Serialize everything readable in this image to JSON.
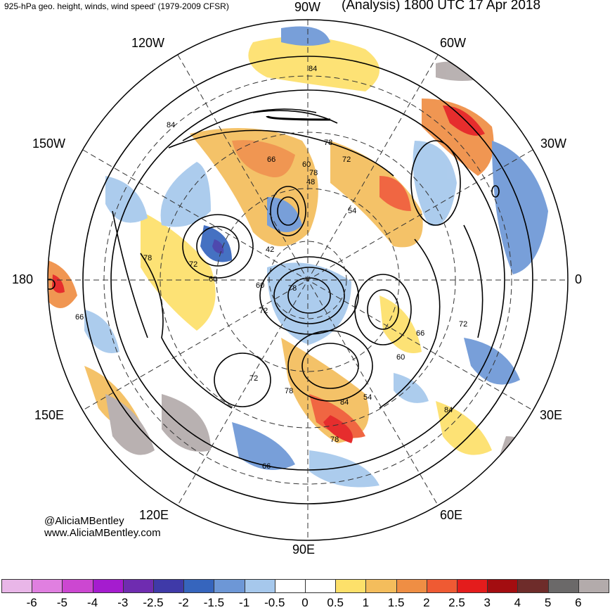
{
  "header": {
    "left_title": "925-hPa geo. height, winds, wind speed' (1979-2009 CFSR)",
    "right_title": "(Analysis) 1800 UTC 17 Apr 2018"
  },
  "longitude_labels": {
    "top": "90W",
    "upper_left": "120W",
    "upper_right": "60W",
    "left_upper": "150W",
    "right_upper": "30W",
    "left": "180",
    "right": "0",
    "left_lower": "150E",
    "right_lower": "30E",
    "lower_left": "120E",
    "lower_right": "60E",
    "bottom": "90E"
  },
  "contour_labels": [
    "84",
    "84",
    "78",
    "72",
    "66",
    "60",
    "48",
    "54",
    "42",
    "78",
    "72",
    "60",
    "60",
    "78",
    "72",
    "66",
    "72",
    "60",
    "54",
    "78",
    "84",
    "78",
    "84",
    "66",
    "72",
    "66",
    "78"
  ],
  "credits": {
    "handle": "@AliciaMBentley",
    "website": "www.AliciaMBentley.com"
  },
  "colorbar": {
    "ticks": [
      "-6",
      "-5",
      "-4",
      "-3",
      "-2.5",
      "-2",
      "-1.5",
      "-1",
      "-0.5",
      "0",
      "0.5",
      "1",
      "1.5",
      "2",
      "2.5",
      "3",
      "4",
      "5",
      "6"
    ],
    "colors": [
      "#e9b6e8",
      "#e07fe0",
      "#cc47d1",
      "#a51ccf",
      "#6f2cb0",
      "#3f3aa8",
      "#3665bd",
      "#6d97d6",
      "#a6c8ec",
      "#ffffff",
      "#ffffff",
      "#fde06a",
      "#f4bd5c",
      "#ef8e44",
      "#ef5a33",
      "#e41c1c",
      "#a30d10",
      "#6e2c2a",
      "#6b6969",
      "#b3abab"
    ]
  }
}
